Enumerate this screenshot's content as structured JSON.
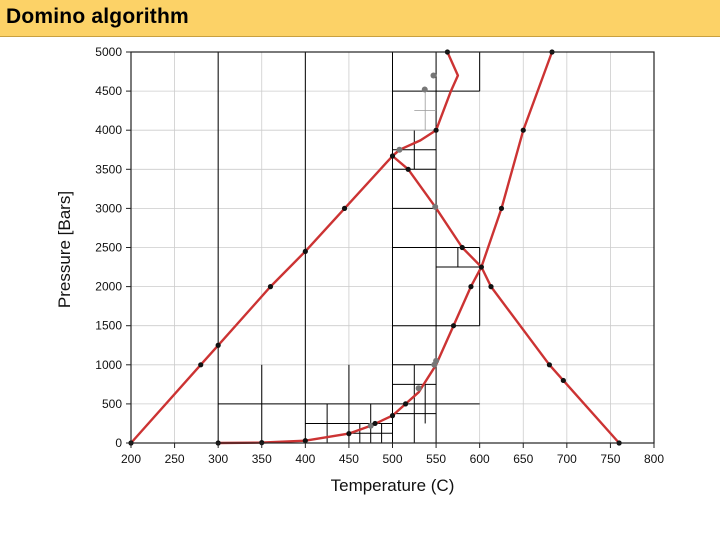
{
  "slide": {
    "title": "Domino algorithm"
  },
  "colors": {
    "curve": "#cc3333",
    "point": "#111111",
    "gray_point": "#777777",
    "grid": "#cccccc",
    "box": "#000000",
    "title_bg": "#fcd267"
  },
  "chart_data": {
    "type": "line",
    "title": "",
    "xlabel": "Temperature (C)",
    "ylabel": "Pressure [Bars]",
    "xlim": [
      200,
      800
    ],
    "ylim": [
      0,
      5000
    ],
    "xticks": [
      200,
      250,
      300,
      350,
      400,
      450,
      500,
      550,
      600,
      650,
      700,
      750,
      800
    ],
    "yticks": [
      0,
      500,
      1000,
      1500,
      2000,
      2500,
      3000,
      3500,
      4000,
      4500,
      5000
    ],
    "grid": true,
    "series": [
      {
        "points": [
          [
            200,
            0
          ],
          [
            280,
            1000
          ],
          [
            300,
            1250
          ],
          [
            360,
            2000
          ],
          [
            400,
            2450
          ],
          [
            445,
            3000
          ],
          [
            500,
            3670
          ],
          [
            508,
            3750
          ],
          [
            532,
            3870
          ],
          [
            550,
            4000
          ]
        ]
      },
      {
        "points": [
          [
            500,
            3670
          ],
          [
            508,
            3750
          ]
        ]
      },
      {
        "points": [
          [
            500,
            3670
          ],
          [
            518,
            3500
          ],
          [
            549,
            3020
          ],
          [
            580,
            2500
          ],
          [
            602,
            2250
          ],
          [
            613,
            2000
          ],
          [
            680,
            1000
          ],
          [
            696,
            800
          ],
          [
            760,
            0
          ]
        ]
      },
      {
        "points": [
          [
            300,
            0
          ],
          [
            350,
            5
          ],
          [
            400,
            30
          ],
          [
            450,
            120
          ],
          [
            475,
            220
          ],
          [
            500,
            350
          ],
          [
            515,
            500
          ],
          [
            530,
            650
          ],
          [
            550,
            1000
          ],
          [
            570,
            1500
          ],
          [
            590,
            2000
          ],
          [
            602,
            2250
          ],
          [
            625,
            3000
          ],
          [
            650,
            4000
          ],
          [
            683,
            5000
          ]
        ]
      },
      {
        "points": [
          [
            550,
            4000
          ],
          [
            567,
            4500
          ],
          [
            575,
            4700
          ],
          [
            563,
            5000
          ]
        ]
      }
    ],
    "markers_black": [
      [
        200,
        0
      ],
      [
        280,
        1000
      ],
      [
        300,
        1250
      ],
      [
        360,
        2000
      ],
      [
        400,
        2450
      ],
      [
        445,
        3000
      ],
      [
        500,
        3670
      ],
      [
        518,
        3500
      ],
      [
        580,
        2500
      ],
      [
        590,
        2000
      ],
      [
        613,
        2000
      ],
      [
        680,
        1000
      ],
      [
        696,
        800
      ],
      [
        760,
        0
      ],
      [
        300,
        0
      ],
      [
        350,
        5
      ],
      [
        400,
        30
      ],
      [
        450,
        120
      ],
      [
        480,
        250
      ],
      [
        500,
        350
      ],
      [
        515,
        500
      ],
      [
        570,
        1500
      ],
      [
        602,
        2250
      ],
      [
        625,
        3000
      ],
      [
        650,
        4000
      ],
      [
        683,
        5000
      ],
      [
        563,
        5000
      ],
      [
        550,
        4000
      ]
    ],
    "markers_gray": [
      [
        508,
        3750
      ],
      [
        549,
        3020
      ],
      [
        537,
        4520
      ],
      [
        547,
        4700
      ],
      [
        550,
        1050
      ],
      [
        548,
        1000
      ],
      [
        475,
        220
      ],
      [
        530,
        700
      ]
    ]
  }
}
